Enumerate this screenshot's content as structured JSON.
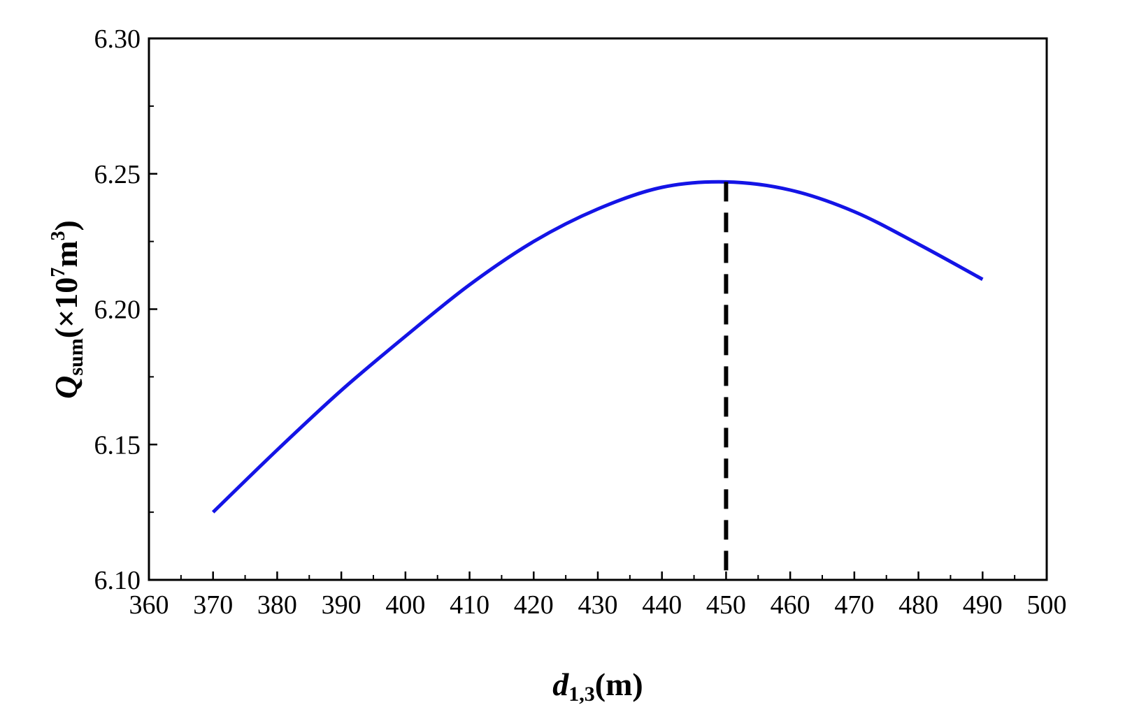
{
  "chart_data": {
    "type": "line",
    "title": "",
    "xlabel": {
      "main": "d",
      "sub": "1,3",
      "unit": "(m)"
    },
    "ylabel": {
      "main": "Q",
      "sub": "sum",
      "prefix": "(×10",
      "exp": "7",
      "unit_start": "m",
      "unit_exp": "3",
      "suffix": ")"
    },
    "xlim": [
      360,
      500
    ],
    "ylim": [
      6.1,
      6.3
    ],
    "x_ticks": [
      "360",
      "370",
      "380",
      "390",
      "400",
      "410",
      "420",
      "430",
      "440",
      "450",
      "460",
      "470",
      "480",
      "490",
      "500"
    ],
    "y_ticks": [
      "6.10",
      "6.15",
      "6.20",
      "6.25",
      "6.30"
    ],
    "grid": false,
    "series": [
      {
        "color": "#1414e6",
        "x": [
          370,
          380,
          390,
          400,
          410,
          420,
          430,
          440,
          450,
          460,
          470,
          480,
          490
        ],
        "y": [
          6.125,
          6.148,
          6.17,
          6.19,
          6.209,
          6.225,
          6.237,
          6.245,
          6.247,
          6.244,
          6.236,
          6.224,
          6.211
        ]
      }
    ],
    "annotations": [
      {
        "type": "vertical-dashed-line",
        "x": 450,
        "y_top": 6.247,
        "color": "#000000"
      }
    ]
  }
}
